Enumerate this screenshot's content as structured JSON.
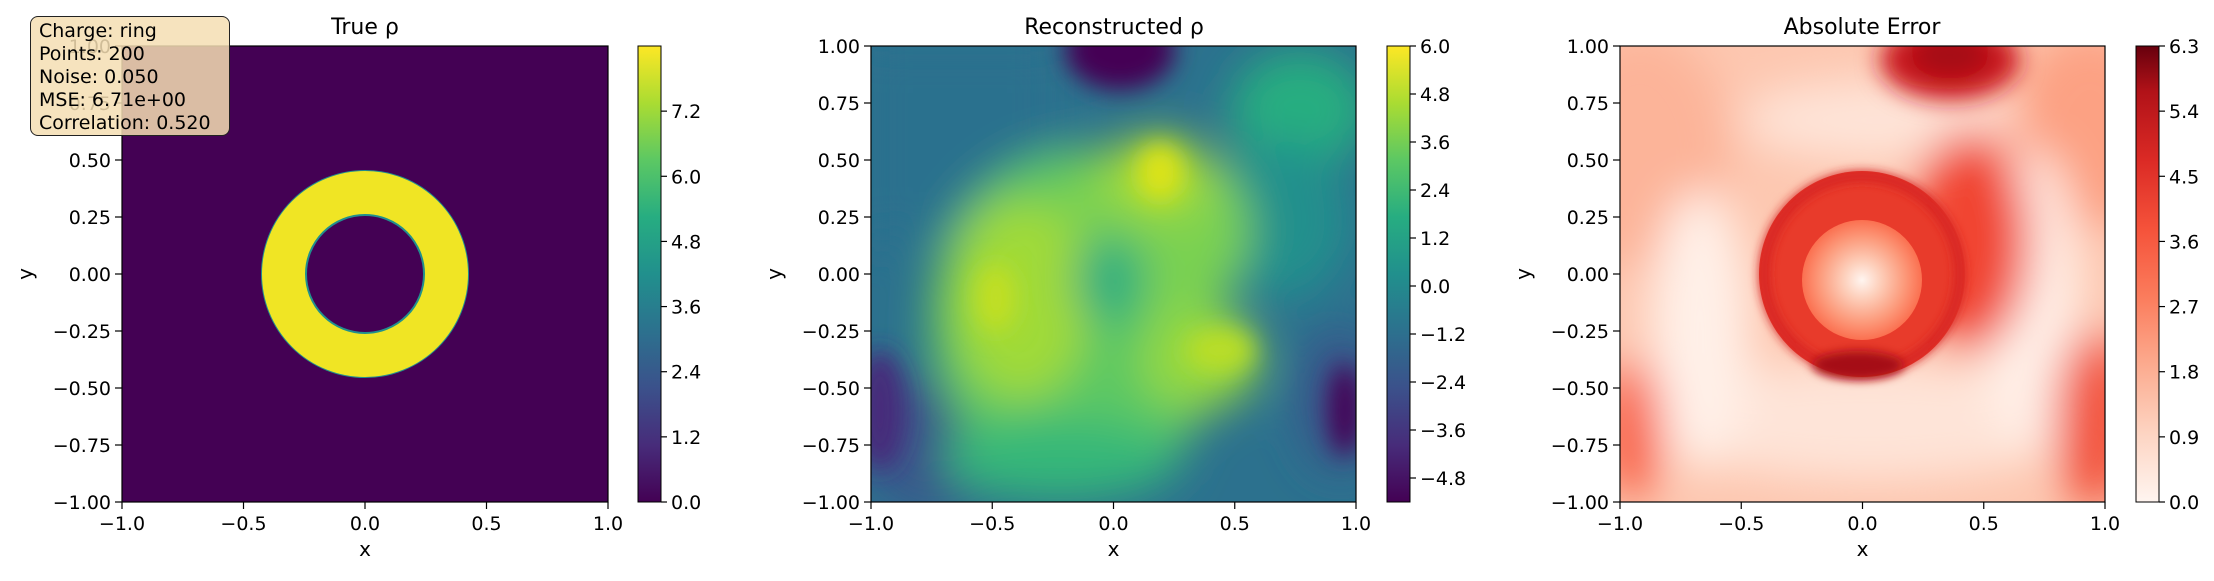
{
  "info_box": {
    "lines": [
      "Charge: ring",
      "Points: 200",
      "Noise: 0.050",
      "MSE: 6.71e+00",
      "Correlation: 0.520"
    ]
  },
  "chart_data": [
    {
      "type": "heatmap",
      "title": "True ρ",
      "xlabel": "x",
      "ylabel": "y",
      "xlim": [
        -1.0,
        1.0
      ],
      "ylim": [
        -1.0,
        1.0
      ],
      "xticks": [
        "−1.0",
        "−0.5",
        "0.0",
        "0.5",
        "1.0"
      ],
      "yticks": [
        "−1.00",
        "−0.75",
        "−0.50",
        "−0.25",
        "0.00",
        "0.25",
        "0.50",
        "0.75",
        "1.00"
      ],
      "colormap": "viridis",
      "colorbar": {
        "min": 0.0,
        "max": 8.4,
        "ticks": [
          "0.0",
          "1.2",
          "2.4",
          "3.6",
          "4.8",
          "6.0",
          "7.2"
        ]
      },
      "field": {
        "shape": "ring",
        "inner_radius": 0.3,
        "outer_radius": 0.5,
        "value_inside": 8.0,
        "value_outside": 0.0
      }
    },
    {
      "type": "heatmap",
      "title": "Reconstructed ρ",
      "xlabel": "x",
      "ylabel": "y",
      "xlim": [
        -1.0,
        1.0
      ],
      "ylim": [
        -1.0,
        1.0
      ],
      "xticks": [
        "−1.0",
        "−0.5",
        "0.0",
        "0.5",
        "1.0"
      ],
      "yticks": [
        "−1.00",
        "−0.75",
        "−0.50",
        "−0.25",
        "0.00",
        "0.25",
        "0.50",
        "0.75",
        "1.00"
      ],
      "colormap": "viridis",
      "colorbar": {
        "min": -5.4,
        "max": 6.0,
        "ticks": [
          "6.0",
          "4.8",
          "3.6",
          "2.4",
          "1.2",
          "0.0",
          "−1.2",
          "−2.4",
          "−3.6",
          "−4.8"
        ]
      },
      "features": [
        {
          "x": -0.45,
          "y": -0.1,
          "value": 5.0
        },
        {
          "x": 0.2,
          "y": 0.42,
          "value": 6.0
        },
        {
          "x": 0.4,
          "y": -0.35,
          "value": 4.6
        },
        {
          "x": 0.0,
          "y": -0.05,
          "value": 2.2
        },
        {
          "x": 0.05,
          "y": 1.0,
          "value": -5.2
        },
        {
          "x": 0.95,
          "y": -0.6,
          "value": -5.0
        },
        {
          "x": -1.0,
          "y": -0.6,
          "value": -3.0
        },
        {
          "x": 0.9,
          "y": 0.95,
          "value": 2.0
        }
      ]
    },
    {
      "type": "heatmap",
      "title": "Absolute Error",
      "xlabel": "x",
      "ylabel": "y",
      "xlim": [
        -1.0,
        1.0
      ],
      "ylim": [
        -1.0,
        1.0
      ],
      "xticks": [
        "−1.0",
        "−0.5",
        "0.0",
        "0.5",
        "1.0"
      ],
      "yticks": [
        "−1.00",
        "−0.75",
        "−0.50",
        "−0.25",
        "0.00",
        "0.25",
        "0.50",
        "0.75",
        "1.00"
      ],
      "colormap": "Reds",
      "colorbar": {
        "min": 0.0,
        "max": 6.3,
        "ticks": [
          "6.3",
          "5.4",
          "4.5",
          "3.6",
          "2.7",
          "1.8",
          "0.9",
          "0.0"
        ]
      }
    }
  ]
}
